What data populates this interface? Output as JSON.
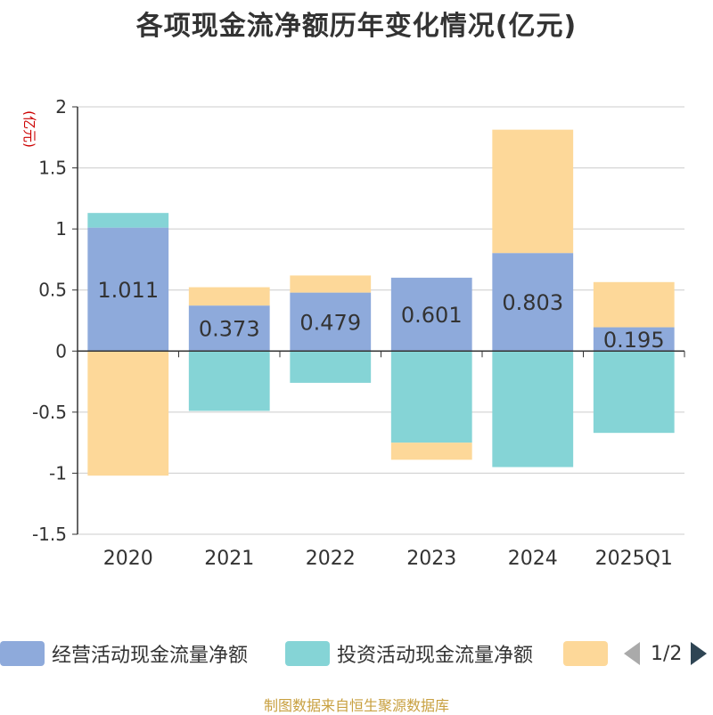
{
  "chart_data": {
    "type": "bar",
    "stacked": true,
    "title": "各项现金流净额历年变化情况(亿元)",
    "ylabel": "(亿元)",
    "xlabel": "",
    "ylim": [
      -1.5,
      2
    ],
    "yticks": [
      2,
      1.5,
      1,
      0.5,
      0,
      -0.5,
      -1,
      -1.5
    ],
    "ytick_labels": [
      "2",
      "1.5",
      "1",
      "0.5",
      "0",
      "-0.5",
      "-1",
      "-1.5"
    ],
    "categories": [
      "2020",
      "2021",
      "2022",
      "2023",
      "2024",
      "2025Q1"
    ],
    "series": [
      {
        "name": "经营活动现金流量净额",
        "color": "#8eaadb",
        "values": [
          1.011,
          0.373,
          0.479,
          0.601,
          0.803,
          0.195
        ],
        "labels": [
          "1.011",
          "0.373",
          "0.479",
          "0.601",
          "0.803",
          "0.195"
        ]
      },
      {
        "name": "投资活动现金流量净额",
        "color": "#85d4d6",
        "values": [
          0.12,
          -0.49,
          -0.26,
          -0.75,
          -0.95,
          -0.67
        ]
      },
      {
        "name": "",
        "color": "#fdd899",
        "values": [
          -1.02,
          0.15,
          0.14,
          -0.14,
          1.01,
          0.37
        ]
      }
    ],
    "grid": true,
    "legend_position": "bottom"
  },
  "legend": {
    "page_text": "1/2"
  },
  "source_note": "制图数据来自恒生聚源数据库"
}
